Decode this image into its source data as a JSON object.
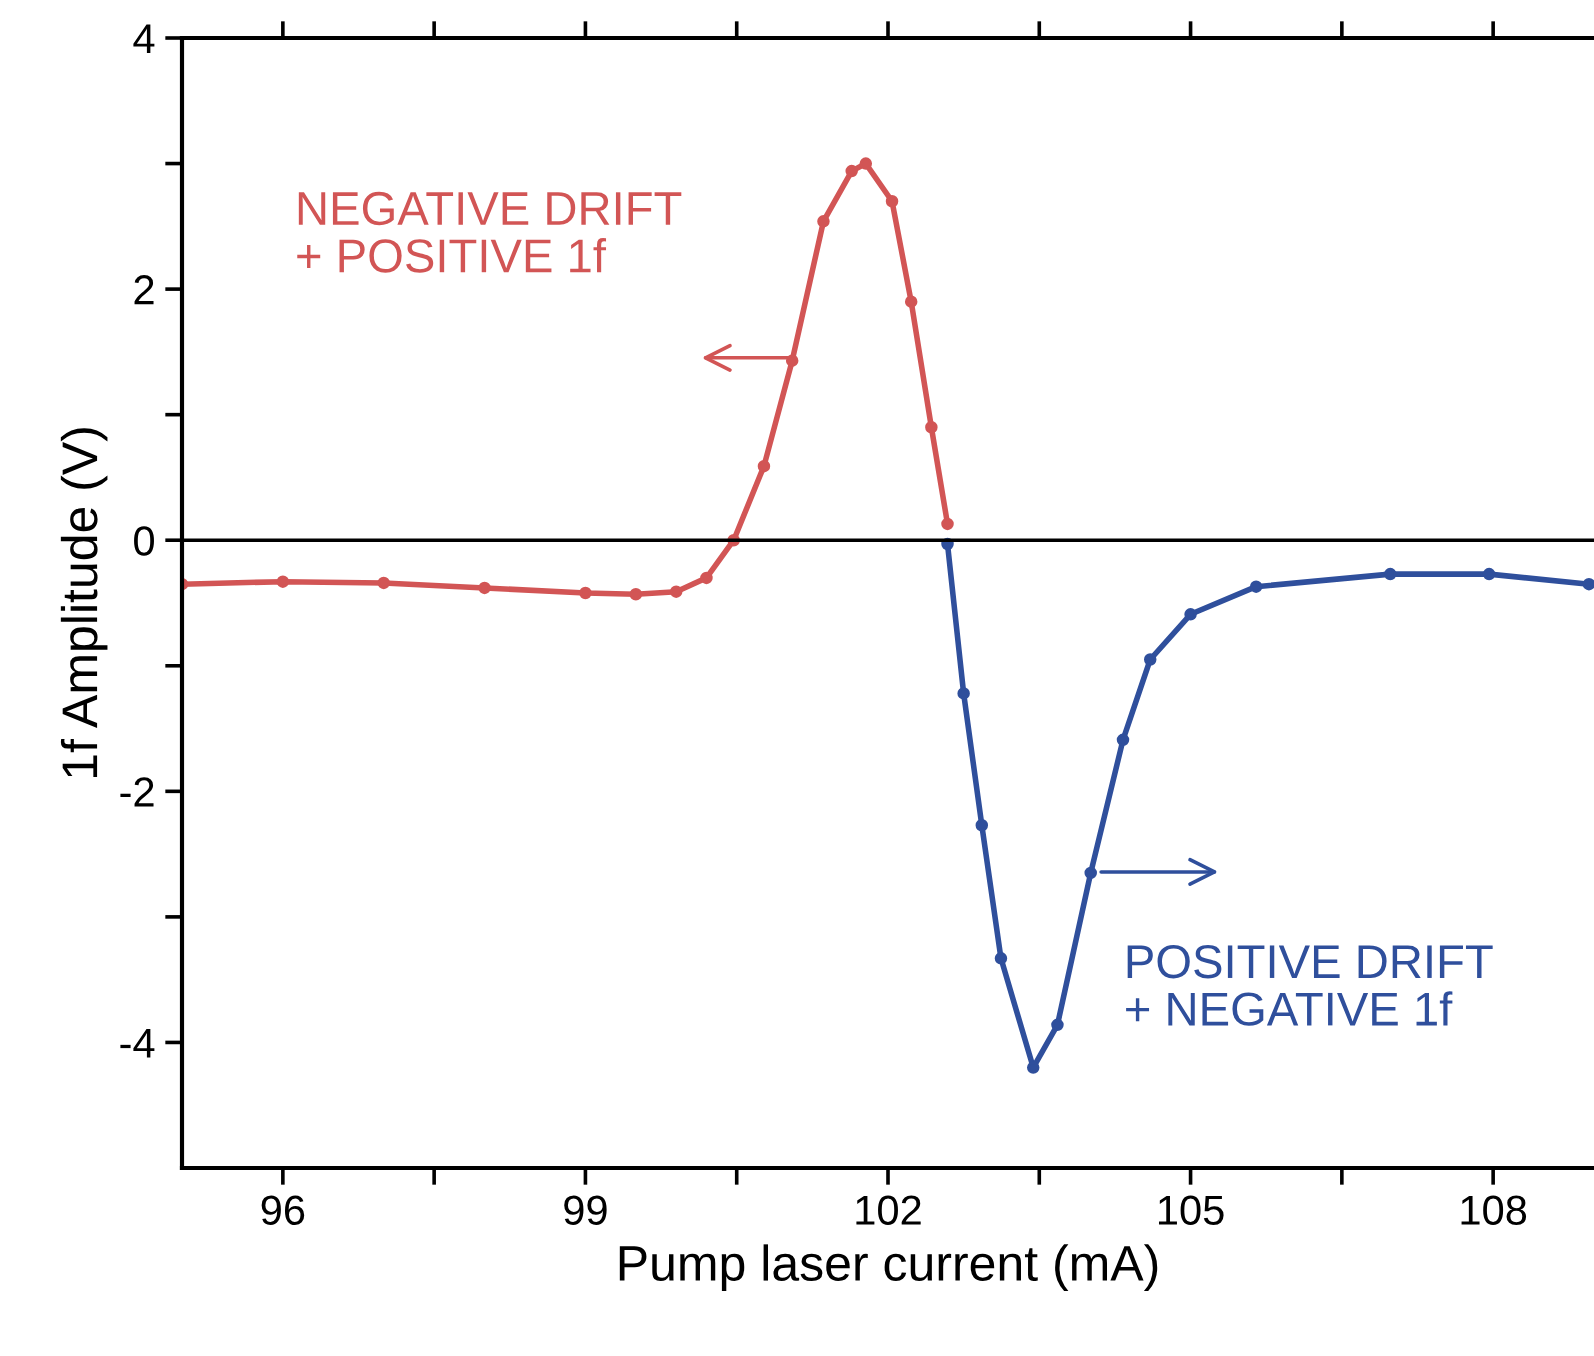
{
  "chart_data": {
    "type": "line",
    "xlabel": "Pump laser current (mA)",
    "ylabel": "1f Amplitude (V)",
    "xlim": [
      95,
      109
    ],
    "ylim": [
      -5,
      4
    ],
    "xticks": [
      96,
      {
        "value": 97.5,
        "label": null
      },
      99,
      {
        "value": 100.5,
        "label": null
      },
      102,
      {
        "value": 103.5,
        "label": null
      },
      105,
      {
        "value": 106.5,
        "label": null
      },
      108
    ],
    "yticks": [
      -4,
      {
        "value": -3,
        "label": null
      },
      -2,
      {
        "value": -1,
        "label": null
      },
      0,
      {
        "value": 1,
        "label": null
      },
      2,
      {
        "value": 3,
        "label": null
      },
      4
    ],
    "marker": "circle",
    "grid": false,
    "legend": false,
    "series": [
      {
        "color": "#d25555",
        "x": [
          95,
          96,
          97,
          98,
          99,
          99.5,
          99.9,
          100.2,
          100.47,
          100.77,
          101.05,
          101.36,
          101.64,
          101.78,
          102.04,
          102.23,
          102.43,
          102.59
        ],
        "values": [
          -0.35,
          -0.33,
          -0.34,
          -0.38,
          -0.42,
          -0.43,
          -0.41,
          -0.3,
          0,
          0.59,
          1.43,
          2.54,
          2.94,
          3.0,
          2.7,
          1.9,
          0.9,
          0.13
        ]
      },
      {
        "color": "#2f4f9c",
        "x": [
          102.59,
          102.75,
          102.93,
          103.12,
          103.44,
          103.68,
          104.01,
          104.33,
          104.6,
          105.0,
          105.65,
          106.98,
          107.96,
          108.95
        ],
        "values": [
          -0.03,
          -1.22,
          -2.27,
          -3.33,
          -4.2,
          -3.86,
          -2.65,
          -1.59,
          -0.95,
          -0.59,
          -0.37,
          -0.27,
          -0.27,
          -0.35
        ]
      }
    ],
    "ref_lines": [
      {
        "axis": "y",
        "value": 0,
        "color": "#000000",
        "line_style": "solid"
      }
    ],
    "annotations": [
      "NEGATIVE DRIFT\n+ POSITIVE 1f",
      "POSITIVE DRIFT\n+ NEGATIVE 1f"
    ]
  }
}
